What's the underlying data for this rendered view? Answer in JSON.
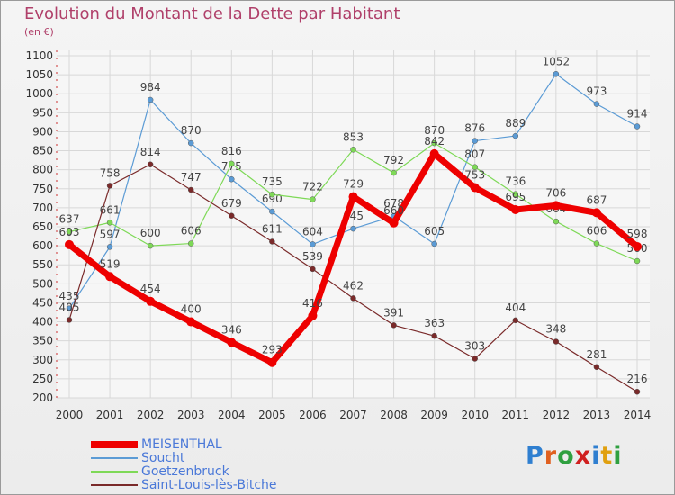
{
  "title": "Evolution du Montant de la Dette par Habitant",
  "subtitle": "(en €)",
  "logo": {
    "text": "Proxiti",
    "letters": [
      "P",
      "r",
      "o",
      "x",
      "i",
      "t",
      "i"
    ],
    "colors": [
      "#2f7fd0",
      "#e06020",
      "#2fa040",
      "#d02020",
      "#2f7fd0",
      "#e0a010",
      "#2fa040"
    ]
  },
  "chart_data": {
    "type": "line",
    "title": "Evolution du Montant de la Dette par Habitant",
    "ylabel": "(en €)",
    "xlabel": "",
    "ylim": [
      200,
      1100
    ],
    "y_ticks": [
      200,
      250,
      300,
      350,
      400,
      450,
      500,
      550,
      600,
      650,
      700,
      750,
      800,
      850,
      900,
      950,
      1000,
      1050,
      1100
    ],
    "grid": true,
    "legend_position": "bottom-left",
    "x": [
      "2000",
      "2001",
      "2002",
      "2003",
      "2004",
      "2005",
      "2006",
      "2007",
      "2008",
      "2009",
      "2010",
      "2011",
      "2012",
      "2013",
      "2014"
    ],
    "series": [
      {
        "name": "MEISENTHAL",
        "color": "#ee0000",
        "width": 7,
        "values": [
          603,
          519,
          454,
          400,
          346,
          293,
          416,
          729,
          660,
          842,
          753,
          695,
          706,
          687,
          598
        ]
      },
      {
        "name": "Soucht",
        "color": "#5b9bd5",
        "width": 1.2,
        "values": [
          435,
          597,
          984,
          870,
          775,
          690,
          604,
          645,
          678,
          605,
          876,
          889,
          1052,
          973,
          914
        ]
      },
      {
        "name": "Goetzenbruck",
        "color": "#7ed957",
        "width": 1.2,
        "values": [
          637,
          661,
          600,
          606,
          816,
          735,
          722,
          853,
          792,
          870,
          807,
          736,
          664,
          606,
          560
        ]
      },
      {
        "name": "Saint-Louis-lès-Bitche",
        "color": "#7a2a2a",
        "width": 1.2,
        "values": [
          405,
          758,
          814,
          747,
          679,
          611,
          539,
          462,
          391,
          363,
          303,
          404,
          348,
          281,
          216
        ]
      }
    ]
  }
}
